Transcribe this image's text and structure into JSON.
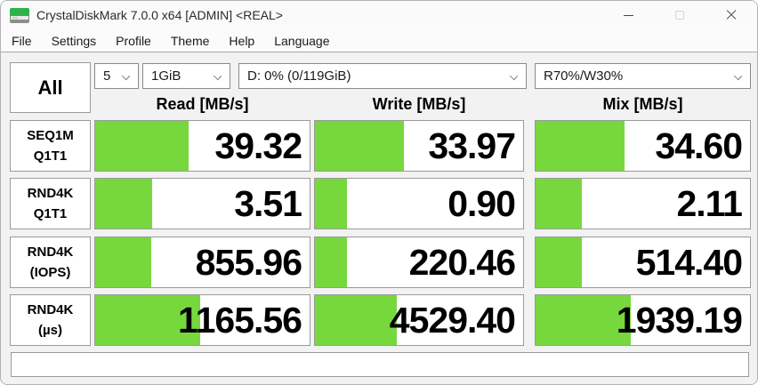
{
  "window": {
    "title": "CrystalDiskMark 7.0.0 x64 [ADMIN] <REAL>"
  },
  "menu": {
    "items": [
      "File",
      "Settings",
      "Profile",
      "Theme",
      "Help",
      "Language"
    ]
  },
  "toolbar": {
    "all_label": "All",
    "test_count": "5",
    "test_size": "1GiB",
    "target_drive": "D: 0% (0/119GiB)",
    "mix_ratio": "R70%/W30%"
  },
  "columns": {
    "read": "Read [MB/s]",
    "write": "Write [MB/s]",
    "mix": "Mix [MB/s]"
  },
  "results": {
    "rows": [
      {
        "label1": "SEQ1M",
        "label2": "Q1T1",
        "read": {
          "value": "39.32",
          "fill_pct": 43.7
        },
        "write": {
          "value": "33.97",
          "fill_pct": 42.6
        },
        "mix": {
          "value": "34.60",
          "fill_pct": 41.6
        }
      },
      {
        "label1": "RND4K",
        "label2": "Q1T1",
        "read": {
          "value": "3.51",
          "fill_pct": 26.5
        },
        "write": {
          "value": "0.90",
          "fill_pct": 15.4
        },
        "mix": {
          "value": "2.11",
          "fill_pct": 21.6
        }
      },
      {
        "label1": "RND4K",
        "label2": "(IOPS)",
        "read": {
          "value": "855.96",
          "fill_pct": 26.0
        },
        "write": {
          "value": "220.46",
          "fill_pct": 15.4
        },
        "mix": {
          "value": "514.40",
          "fill_pct": 21.7
        }
      },
      {
        "label1": "RND4K",
        "label2": "(µs)",
        "read": {
          "value": "1165.56",
          "fill_pct": 49.0
        },
        "write": {
          "value": "4529.40",
          "fill_pct": 39.2
        },
        "mix": {
          "value": "1939.19",
          "fill_pct": 44.3
        }
      }
    ]
  },
  "comment": {
    "value": ""
  },
  "colors": {
    "bar_green": "#77d83e",
    "cell_border": "#9a9a9a",
    "client_bg": "#f2f2f2"
  }
}
